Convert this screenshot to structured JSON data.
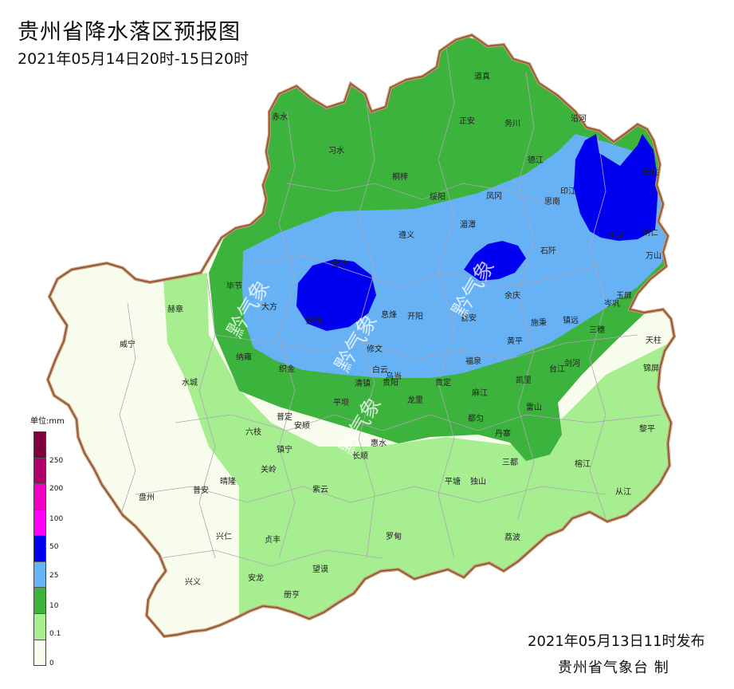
{
  "header": {
    "title": "贵州省降水落区预报图",
    "subtitle": "2021年05月14日20时-15日20时"
  },
  "footer": {
    "issue_time": "2021年05月13日11时发布",
    "agency": "贵州省气象台  制"
  },
  "legend": {
    "unit": "单位:mm",
    "bands": [
      {
        "label": "",
        "color": "#800040"
      },
      {
        "label": "250",
        "color": "#B0006A"
      },
      {
        "label": "200",
        "color": "#F000C0"
      },
      {
        "label": "100",
        "color": "#FF00FF"
      },
      {
        "label": "50",
        "color": "#0000F0"
      },
      {
        "label": "25",
        "color": "#66B2F5"
      },
      {
        "label": "10",
        "color": "#3CB33C"
      },
      {
        "label": "0.1",
        "color": "#A6EE8F"
      },
      {
        "label": "0",
        "color": "#F8FCEC"
      }
    ]
  },
  "watermark": "黔气象",
  "cities": [
    {
      "name": "道真"
    },
    {
      "name": "沿河"
    },
    {
      "name": "赤水"
    },
    {
      "name": "正安"
    },
    {
      "name": "务川"
    },
    {
      "name": "习水"
    },
    {
      "name": "德江"
    },
    {
      "name": "松桃"
    },
    {
      "name": "桐梓"
    },
    {
      "name": "绥阳"
    },
    {
      "name": "凤冈"
    },
    {
      "name": "思南"
    },
    {
      "name": "印江"
    },
    {
      "name": "湄潭"
    },
    {
      "name": "遵义"
    },
    {
      "name": "江口"
    },
    {
      "name": "铜仁"
    },
    {
      "name": "石阡"
    },
    {
      "name": "万山"
    },
    {
      "name": "金沙"
    },
    {
      "name": "毕节"
    },
    {
      "name": "大方"
    },
    {
      "name": "余庆"
    },
    {
      "name": "玉屏"
    },
    {
      "name": "岑巩"
    },
    {
      "name": "赫章"
    },
    {
      "name": "黔西"
    },
    {
      "name": "息烽"
    },
    {
      "name": "开阳"
    },
    {
      "name": "瓮安"
    },
    {
      "name": "施秉"
    },
    {
      "name": "镇远"
    },
    {
      "name": "三穗"
    },
    {
      "name": "天柱"
    },
    {
      "name": "威宁"
    },
    {
      "name": "修文"
    },
    {
      "name": "黄平"
    },
    {
      "name": "纳雍"
    },
    {
      "name": "织金"
    },
    {
      "name": "白云"
    },
    {
      "name": "乌当"
    },
    {
      "name": "福泉"
    },
    {
      "name": "台江"
    },
    {
      "name": "剑河"
    },
    {
      "name": "锦屏"
    },
    {
      "name": "水城"
    },
    {
      "name": "清镇"
    },
    {
      "name": "贵阳"
    },
    {
      "name": "贵定"
    },
    {
      "name": "麻江"
    },
    {
      "name": "凯里"
    },
    {
      "name": "平坝"
    },
    {
      "name": "龙里"
    },
    {
      "name": "雷山"
    },
    {
      "name": "普定"
    },
    {
      "name": "都匀"
    },
    {
      "name": "安顺"
    },
    {
      "name": "六枝"
    },
    {
      "name": "惠水"
    },
    {
      "name": "丹寨"
    },
    {
      "name": "黎平"
    },
    {
      "name": "镇宁"
    },
    {
      "name": "长顺"
    },
    {
      "name": "三都"
    },
    {
      "name": "关岭"
    },
    {
      "name": "榕江"
    },
    {
      "name": "普安"
    },
    {
      "name": "晴隆"
    },
    {
      "name": "平塘"
    },
    {
      "name": "独山"
    },
    {
      "name": "盘州"
    },
    {
      "name": "紫云"
    },
    {
      "name": "从江"
    },
    {
      "name": "兴仁"
    },
    {
      "name": "贞丰"
    },
    {
      "name": "罗甸"
    },
    {
      "name": "荔波"
    },
    {
      "name": "望谟"
    },
    {
      "name": "兴义"
    },
    {
      "name": "安龙"
    },
    {
      "name": "册亨"
    }
  ]
}
